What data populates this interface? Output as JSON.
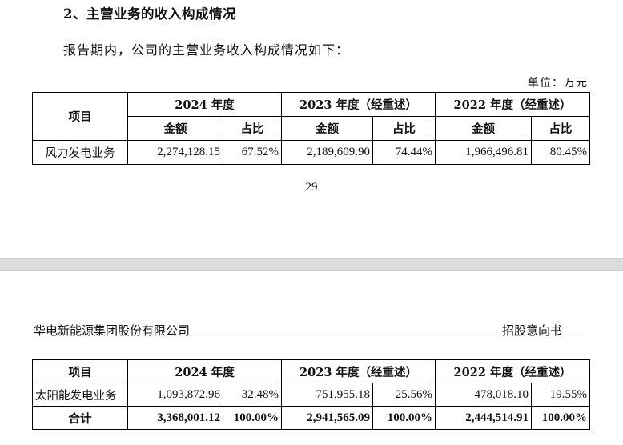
{
  "page1": {
    "section_heading": "2、主营业务的收入构成情况",
    "intro": "报告期内，公司的主营业务收入构成情况如下：",
    "unit": "单位：万元",
    "page_number": "29"
  },
  "page2": {
    "header_left": "华电新能源集团股份有限公司",
    "header_right": "招股意向书"
  },
  "table": {
    "col_item": "项目",
    "years": [
      "2024 年度",
      "2023 年度（经重述）",
      "2022 年度（经重述）"
    ],
    "sub_amount": "金额",
    "sub_ratio": "占比",
    "rows_page1": [
      {
        "item": "风力发电业务",
        "values": [
          "2,274,128.15",
          "67.52%",
          "2,189,609.90",
          "74.44%",
          "1,966,496.81",
          "80.45%"
        ]
      }
    ],
    "rows_page2": [
      {
        "item": "太阳能发电业务",
        "values": [
          "1,093,872.96",
          "32.48%",
          "751,955.18",
          "25.56%",
          "478,018.10",
          "19.55%"
        ]
      }
    ],
    "total": {
      "item": "合计",
      "values": [
        "3,368,001.12",
        "100.00%",
        "2,941,565.09",
        "100.00%",
        "2,444,514.91",
        "100.00%"
      ]
    }
  }
}
